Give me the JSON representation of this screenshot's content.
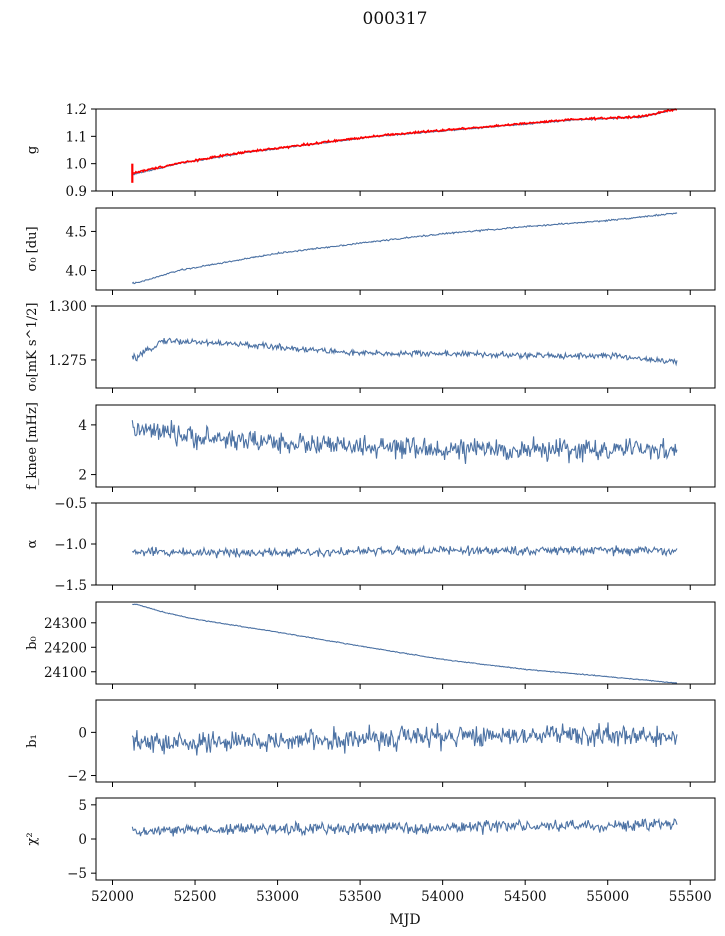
{
  "figure": {
    "title": "000317",
    "xlabel": "MJD",
    "xlim": [
      51900,
      55650
    ],
    "xticks": [
      52000,
      52500,
      53000,
      53500,
      54000,
      54500,
      55000,
      55500
    ],
    "x_start": 52120,
    "x_end": 55420
  },
  "colors": {
    "series": "#4c72a4",
    "model": "#ff0000",
    "axes": "#000000",
    "background": "#ffffff"
  },
  "chart_data": [
    {
      "type": "line",
      "ylabel": "g",
      "ylim": [
        0.9,
        1.2
      ],
      "yticks": [
        "0.9",
        "1.0",
        "1.1",
        "1.2"
      ],
      "series": [
        {
          "x": [
            52120,
            52400,
            52800,
            53200,
            53600,
            54000,
            54400,
            54800,
            55200,
            55420
          ],
          "values": [
            0.96,
            1.0,
            1.04,
            1.07,
            1.1,
            1.12,
            1.14,
            1.16,
            1.17,
            1.2
          ],
          "noise": 0.002
        },
        {
          "x": [
            52120,
            52400,
            52800,
            53200,
            53600,
            54000,
            54400,
            54800,
            55200,
            55420
          ],
          "values": [
            0.965,
            1.002,
            1.042,
            1.072,
            1.102,
            1.122,
            1.142,
            1.162,
            1.172,
            1.2
          ],
          "noise": 0.003,
          "color": "model"
        }
      ]
    },
    {
      "type": "line",
      "ylabel": "σ₀ [du]",
      "ylim": [
        3.75,
        4.8
      ],
      "yticks": [
        "4.0",
        "4.5"
      ],
      "series": [
        {
          "x": [
            52150,
            52400,
            53000,
            53500,
            54000,
            54500,
            55000,
            55400
          ],
          "values": [
            3.84,
            4.0,
            4.22,
            4.35,
            4.47,
            4.56,
            4.64,
            4.73
          ],
          "noise": 0.008
        }
      ]
    },
    {
      "type": "line",
      "ylabel": "σ₀[mK s^1/2]",
      "ylim": [
        1.262,
        1.3
      ],
      "yticks": [
        "1.275",
        "1.300"
      ],
      "series": [
        {
          "x": [
            52150,
            52300,
            52600,
            53000,
            53500,
            54000,
            54500,
            55000,
            55300,
            55400
          ],
          "values": [
            1.276,
            1.284,
            1.283,
            1.281,
            1.278,
            1.278,
            1.277,
            1.277,
            1.275,
            1.274
          ],
          "noise": 0.0012
        }
      ]
    },
    {
      "type": "line",
      "ylabel": "f_knee [mHz]",
      "ylim": [
        1.5,
        4.8
      ],
      "yticks": [
        "2",
        "4"
      ],
      "series": [
        {
          "x": [
            52150,
            52500,
            53000,
            53500,
            54000,
            54500,
            55000,
            55400
          ],
          "values": [
            3.8,
            3.5,
            3.3,
            3.1,
            3.0,
            3.0,
            3.0,
            3.0
          ],
          "noise": 0.35
        }
      ]
    },
    {
      "type": "line",
      "ylabel": "α",
      "ylim": [
        -1.5,
        -0.5
      ],
      "yticks": [
        "−1.5",
        "−1.0",
        "−0.5"
      ],
      "series": [
        {
          "x": [
            52150,
            53000,
            54000,
            55400
          ],
          "values": [
            -1.1,
            -1.1,
            -1.08,
            -1.08
          ],
          "noise": 0.045
        }
      ]
    },
    {
      "type": "line",
      "ylabel": "b₀",
      "ylim": [
        24050,
        24385
      ],
      "yticks": [
        "24100",
        "24200",
        "24300"
      ],
      "series": [
        {
          "x": [
            52150,
            52300,
            52500,
            53000,
            53500,
            54000,
            54500,
            55000,
            55400
          ],
          "values": [
            24375,
            24345,
            24315,
            24262,
            24205,
            24150,
            24110,
            24080,
            24055
          ],
          "noise": 1.5
        }
      ]
    },
    {
      "type": "line",
      "ylabel": "b₁",
      "ylim": [
        -2.3,
        1.5
      ],
      "yticks": [
        "−2",
        "0"
      ],
      "series": [
        {
          "x": [
            52150,
            52500,
            53000,
            53500,
            54000,
            54500,
            55000,
            55400
          ],
          "values": [
            -0.5,
            -0.5,
            -0.4,
            -0.3,
            -0.2,
            -0.1,
            -0.1,
            -0.3
          ],
          "noise": 0.42
        }
      ]
    },
    {
      "type": "line",
      "ylabel": "χ²",
      "ylim": [
        -6,
        6
      ],
      "yticks": [
        "−5",
        "0",
        "5"
      ],
      "series": [
        {
          "x": [
            52150,
            52500,
            53000,
            53500,
            54000,
            54500,
            55000,
            55400
          ],
          "values": [
            1.0,
            1.4,
            1.5,
            1.6,
            1.7,
            1.9,
            1.9,
            2.2
          ],
          "noise": 0.7
        }
      ]
    }
  ]
}
